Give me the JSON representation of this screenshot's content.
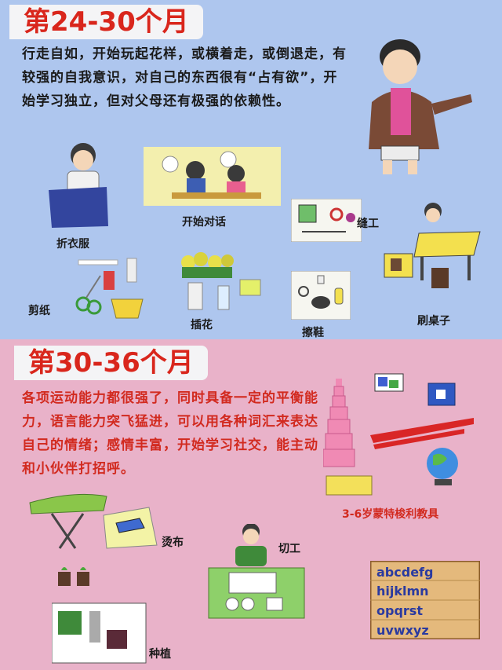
{
  "section1": {
    "title": "第24-30个月",
    "description": "行走自如，开始玩起花样，或横着走，或倒退走，有较强的自我意识，对自己的东西很有“占有欲”，开始学习独立，但对父母还有极强的依赖性。",
    "activities": [
      "折衣服",
      "开始对话",
      "缝工",
      "剪纸",
      "插花",
      "擦鞋",
      "刷桌子"
    ]
  },
  "section2": {
    "title": "第30-36个月",
    "description": "各项运动能力都很强了，同时具备一定的平衡能力，语言能力突飞猛进，可以用各种词汇来表达自己的情绪；感情丰富，开始学习社交，能主动和小伙伴打招呼。",
    "activities": [
      "3-6岁蒙特梭利教具",
      "烫布",
      "切工",
      "种植"
    ],
    "alphabet_tray": "abcdefghijklmnopqrstuvwxyz"
  },
  "colors": {
    "top_bg": "#aec6ee",
    "bottom_bg": "#e9b2c9",
    "title_red": "#d9261c",
    "desc_red": "#d22a1f"
  }
}
